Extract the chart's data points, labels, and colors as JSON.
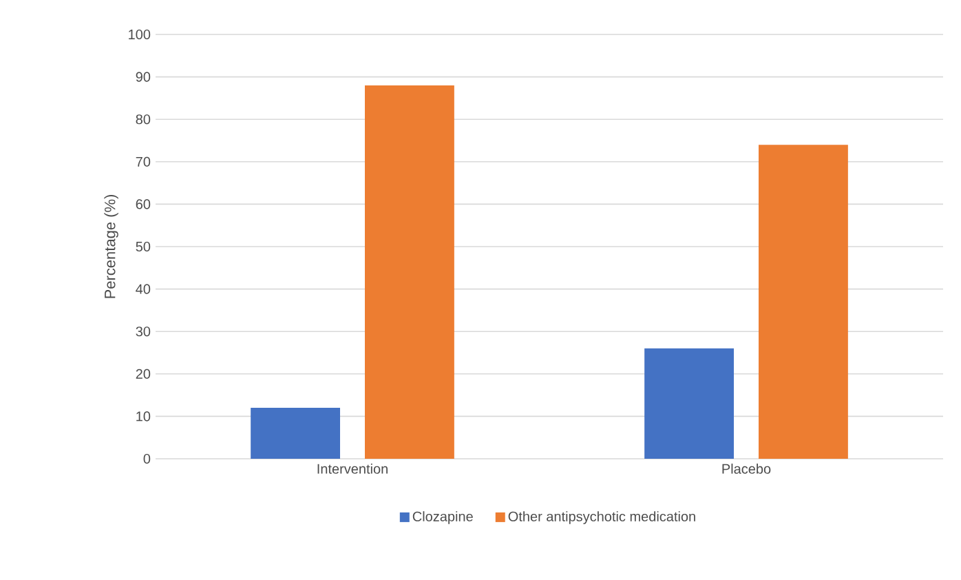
{
  "chart_data": {
    "type": "bar",
    "ylabel": "Percentage (%)",
    "categories": [
      "Intervention",
      "Placebo"
    ],
    "series": [
      {
        "name": "Clozapine",
        "color": "#4472c4",
        "values": [
          12,
          26
        ]
      },
      {
        "name": "Other antipsychotic medication",
        "color": "#ed7d31",
        "values": [
          88,
          74
        ]
      }
    ],
    "ylim": [
      0,
      100
    ],
    "yticks": [
      0,
      10,
      20,
      30,
      40,
      50,
      60,
      70,
      80,
      90,
      100
    ],
    "grid": "y",
    "legend": "bottom"
  }
}
